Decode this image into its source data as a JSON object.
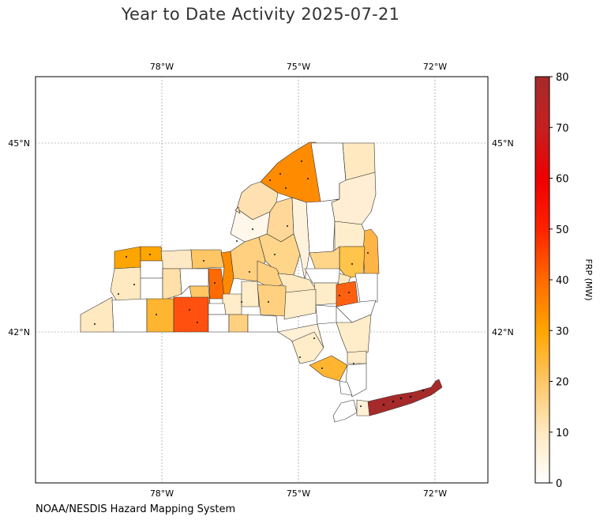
{
  "title": "Year to Date Activity 2025-07-21",
  "credit": "NOAA/NESDIS Hazard Mapping System",
  "colorbar": {
    "label": "FRP (MW)",
    "ticks": [
      "0",
      "10",
      "20",
      "30",
      "40",
      "50",
      "60",
      "70",
      "80"
    ],
    "min": 0,
    "max": 80,
    "colors": [
      "#ffffff",
      "#ffe9c0",
      "#ffc666",
      "#ffa500",
      "#ff6a00",
      "#ff2200",
      "#ee0000",
      "#c42020",
      "#a62a2a"
    ]
  },
  "axes": {
    "lon_top": [
      "78°W",
      "75°W",
      "72°W"
    ],
    "lon_bottom": [
      "78°W",
      "75°W",
      "72°W"
    ],
    "lat_left": [
      "45°N",
      "42°N"
    ],
    "lat_right": [
      "45°N",
      "42°N"
    ]
  },
  "chart_data": {
    "type": "choropleth",
    "region": "New York State counties",
    "grid": true,
    "colorbar_placement": "right",
    "xlim": [
      -80.75,
      -70.8
    ],
    "ylim": [
      39.6,
      46.05
    ]
  }
}
